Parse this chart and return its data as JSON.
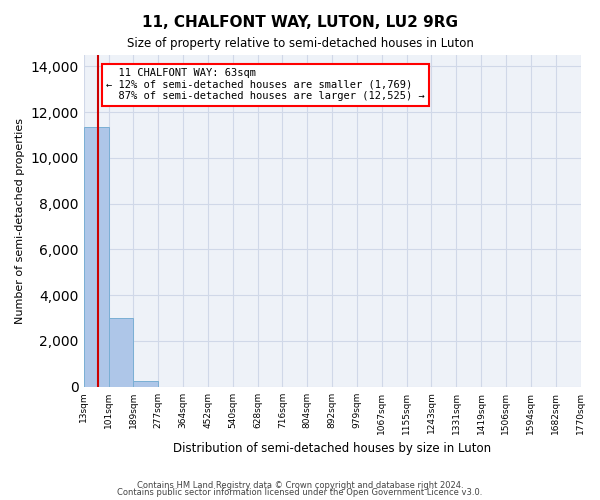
{
  "title": "11, CHALFONT WAY, LUTON, LU2 9RG",
  "subtitle": "Size of property relative to semi-detached houses in Luton",
  "xlabel": "Distribution of semi-detached houses by size in Luton",
  "ylabel": "Number of semi-detached properties",
  "property_size": 63,
  "property_label": "11 CHALFONT WAY: 63sqm",
  "pct_smaller": 12,
  "num_smaller": 1769,
  "pct_larger": 87,
  "num_larger": 12525,
  "bar_color": "#aec6e8",
  "bar_edge_color": "#7aafd4",
  "annotation_box_color": "#ffffff",
  "annotation_border_color": "#ff0000",
  "vline_color": "#cc0000",
  "grid_color": "#d0d8e8",
  "background_color": "#eef2f8",
  "bin_edges": [
    13,
    101,
    189,
    277,
    364,
    452,
    540,
    628,
    716,
    804,
    892,
    979,
    1067,
    1155,
    1243,
    1331,
    1419,
    1506,
    1594,
    1682,
    1770
  ],
  "bin_labels": [
    "13sqm",
    "101sqm",
    "189sqm",
    "277sqm",
    "364sqm",
    "452sqm",
    "540sqm",
    "628sqm",
    "716sqm",
    "804sqm",
    "892sqm",
    "979sqm",
    "1067sqm",
    "1155sqm",
    "1243sqm",
    "1331sqm",
    "1419sqm",
    "1506sqm",
    "1594sqm",
    "1682sqm",
    "1770sqm"
  ],
  "bar_heights": [
    11350,
    3000,
    230,
    0,
    0,
    0,
    0,
    0,
    0,
    0,
    0,
    0,
    0,
    0,
    0,
    0,
    0,
    0,
    0,
    0
  ],
  "ylim": [
    0,
    14500
  ],
  "yticks": [
    0,
    2000,
    4000,
    6000,
    8000,
    10000,
    12000,
    14000
  ],
  "footer_line1": "Contains HM Land Registry data © Crown copyright and database right 2024.",
  "footer_line2": "Contains public sector information licensed under the Open Government Licence v3.0."
}
